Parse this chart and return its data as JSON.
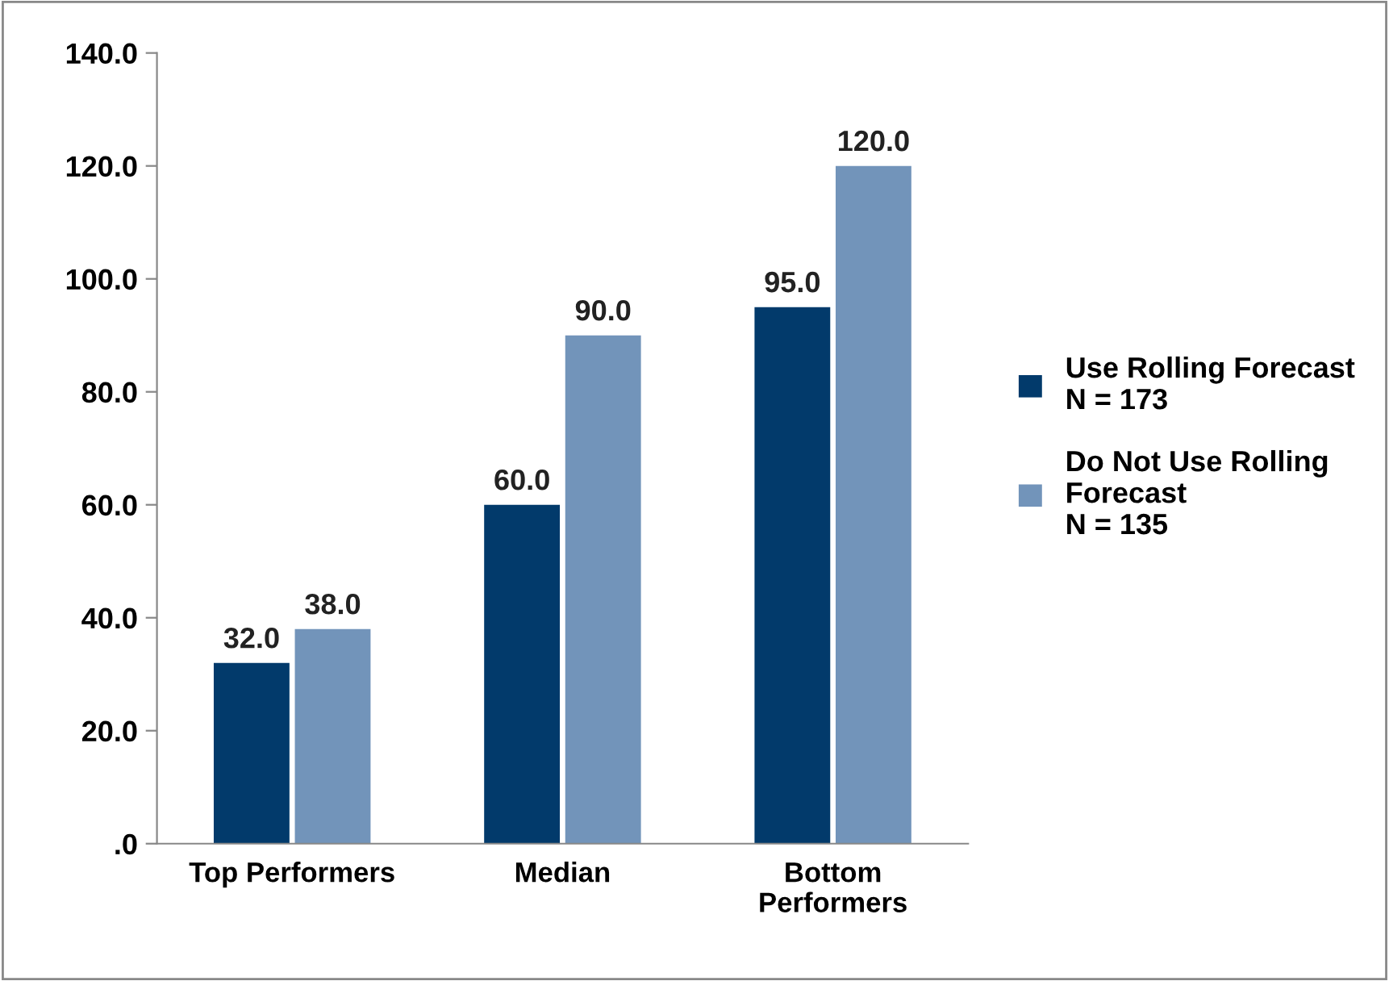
{
  "chart_data": {
    "type": "bar",
    "categories": [
      "Top Performers",
      "Median",
      "Bottom\nPerformers"
    ],
    "series": [
      {
        "name": "Use Rolling Forecast\nN = 173",
        "color": "#023a6b",
        "values": [
          32.0,
          60.0,
          95.0
        ],
        "value_labels": [
          "32.0",
          "60.0",
          "95.0"
        ]
      },
      {
        "name": "Do Not Use Rolling\nForecast\nN = 135",
        "color": "#7294ba",
        "values": [
          38.0,
          90.0,
          120.0
        ],
        "value_labels": [
          "38.0",
          "90.0",
          "120.0"
        ]
      }
    ],
    "ylim": [
      0,
      140
    ],
    "yticks": [
      {
        "value": 0,
        "label": ".0"
      },
      {
        "value": 20,
        "label": "20.0"
      },
      {
        "value": 40,
        "label": "40.0"
      },
      {
        "value": 60,
        "label": "60.0"
      },
      {
        "value": 80,
        "label": "80.0"
      },
      {
        "value": 100,
        "label": "100.0"
      },
      {
        "value": 120,
        "label": "120.0"
      },
      {
        "value": 140,
        "label": "140.0"
      }
    ],
    "grid": false,
    "legend": "right"
  }
}
